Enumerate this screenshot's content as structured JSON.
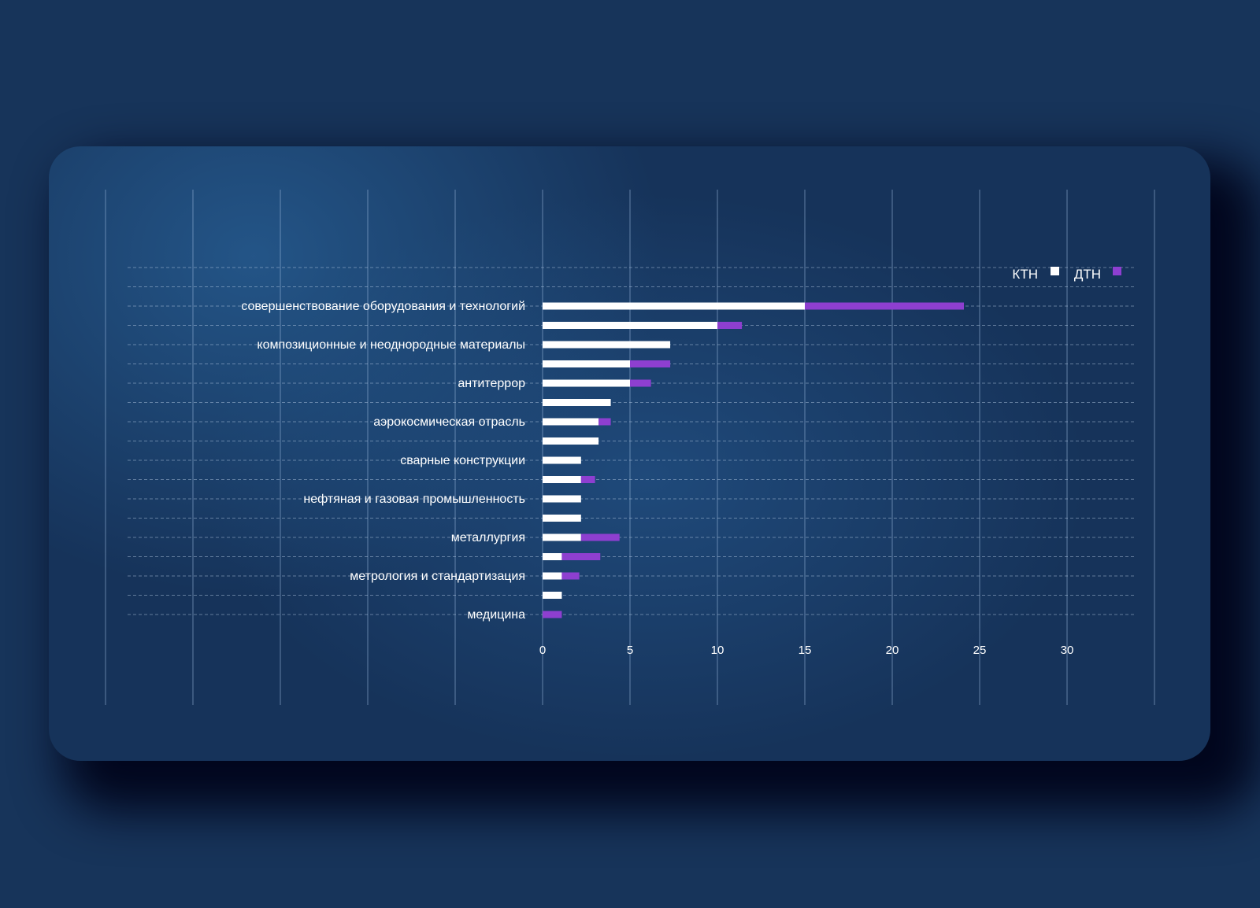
{
  "chart_data": {
    "type": "bar",
    "orientation": "horizontal",
    "stacked": true,
    "categories": [
      "совершенствование оборудования и технологий",
      "",
      "композиционные и неоднородные материалы",
      "",
      "антитеррор",
      "",
      "аэрокосмическая отрасль",
      "",
      "сварные конструкции",
      "",
      "нефтяная и газовая промышленность",
      "",
      "металлургия",
      "",
      "метрология и стандартизация",
      "",
      "медицина"
    ],
    "series": [
      {
        "name": "КТН",
        "color": "#ffffff",
        "values": [
          15,
          10,
          7.3,
          5,
          5,
          3.9,
          3.2,
          3.2,
          2.2,
          2.2,
          2.2,
          2.2,
          2.2,
          1.1,
          1.1,
          1.1,
          0
        ]
      },
      {
        "name": "ДТН",
        "color": "#8e3fd0",
        "values": [
          9.1,
          1.4,
          0,
          2.3,
          1.2,
          0,
          0.7,
          0,
          0,
          0.8,
          0,
          0,
          2.2,
          2.2,
          1,
          0,
          1.1
        ]
      }
    ],
    "x_ticks": [
      "0",
      "5",
      "10",
      "15",
      "20",
      "25",
      "30"
    ],
    "xlim": [
      -25,
      35
    ],
    "grid": true,
    "legend": "top-right"
  }
}
